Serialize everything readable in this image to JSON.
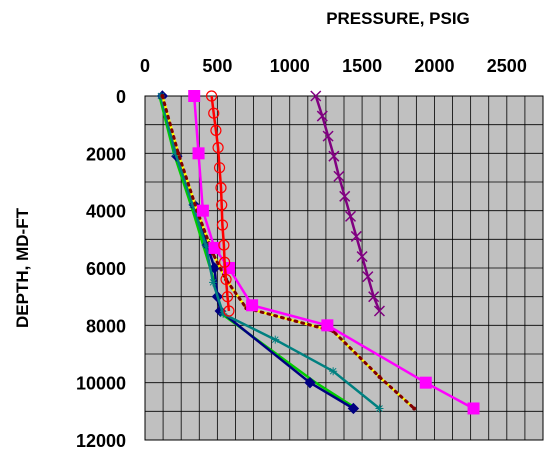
{
  "chart_data": {
    "type": "line",
    "title": "",
    "xlabel": "PRESSURE, PSIG",
    "ylabel": "DEPTH, MD-FT",
    "x_axis_position": "top",
    "y_axis_inverted": true,
    "xlim": [
      0,
      2750
    ],
    "ylim": [
      0,
      12000
    ],
    "x_ticks": [
      0,
      500,
      1000,
      1500,
      2000,
      2500
    ],
    "x_tick_labels": [
      "0",
      "500",
      "1000",
      "1500",
      "2000",
      "2500"
    ],
    "y_ticks": [
      0,
      2000,
      4000,
      6000,
      8000,
      10000,
      12000
    ],
    "y_tick_labels": [
      "0",
      "2000",
      "4000",
      "6000",
      "8000",
      "10000",
      "12000"
    ],
    "grid": true,
    "x_minor_step": 125,
    "y_minor_step": 1000,
    "plot_background": "#c0c0c0",
    "grid_color": "#000000",
    "legend": null,
    "series": [
      {
        "color": "#00cc00",
        "marker": "none",
        "x": [
          100,
          200,
          330,
          420,
          480,
          530,
          1180,
          1460
        ],
        "y": [
          0,
          2000,
          4000,
          5500,
          6500,
          7600,
          10000,
          10900
        ]
      },
      {
        "color": "#000080",
        "marker": "diamond",
        "x": [
          120,
          220,
          340,
          430,
          480,
          500,
          520,
          1140,
          1440
        ],
        "y": [
          0,
          2100,
          3800,
          5200,
          6000,
          7000,
          7500,
          10000,
          10900
        ]
      },
      {
        "color": "#008080",
        "marker": "star",
        "x": [
          110,
          210,
          330,
          420,
          470,
          540,
          900,
          1300,
          1620
        ],
        "y": [
          0,
          2000,
          3800,
          5200,
          6500,
          7600,
          8500,
          9600,
          10900
        ]
      },
      {
        "color": "#ffff00",
        "marker": "none",
        "x": [
          120,
          230,
          360,
          470,
          560,
          700,
          1300,
          1620,
          1860
        ],
        "y": [
          0,
          2000,
          4000,
          5500,
          6400,
          7400,
          8200,
          9800,
          10900
        ]
      },
      {
        "color": "#800000",
        "marker": "dot",
        "x": [
          120,
          230,
          360,
          470,
          560,
          700,
          1300,
          1620,
          1860
        ],
        "y": [
          0,
          2000,
          4000,
          5500,
          6400,
          7400,
          8200,
          9800,
          10900
        ]
      },
      {
        "color": "#ff00ff",
        "marker": "square",
        "x": [
          340,
          370,
          400,
          480,
          580,
          740,
          1260,
          1940,
          2270
        ],
        "y": [
          0,
          2000,
          4000,
          5300,
          6000,
          7300,
          8000,
          10000,
          10900
        ]
      },
      {
        "color": "#ff0000",
        "marker": "circle",
        "x": [
          460,
          475,
          490,
          505,
          515,
          525,
          530,
          535,
          545,
          550,
          560,
          570,
          580
        ],
        "y": [
          0,
          600,
          1200,
          1800,
          2500,
          3200,
          3800,
          4500,
          5200,
          5800,
          6400,
          7000,
          7500
        ]
      },
      {
        "color": "#800080",
        "marker": "x",
        "x": [
          1180,
          1225,
          1265,
          1305,
          1340,
          1380,
          1420,
          1460,
          1500,
          1540,
          1580,
          1620
        ],
        "y": [
          0,
          700,
          1400,
          2100,
          2800,
          3500,
          4200,
          4900,
          5600,
          6300,
          7000,
          7500
        ]
      }
    ]
  }
}
